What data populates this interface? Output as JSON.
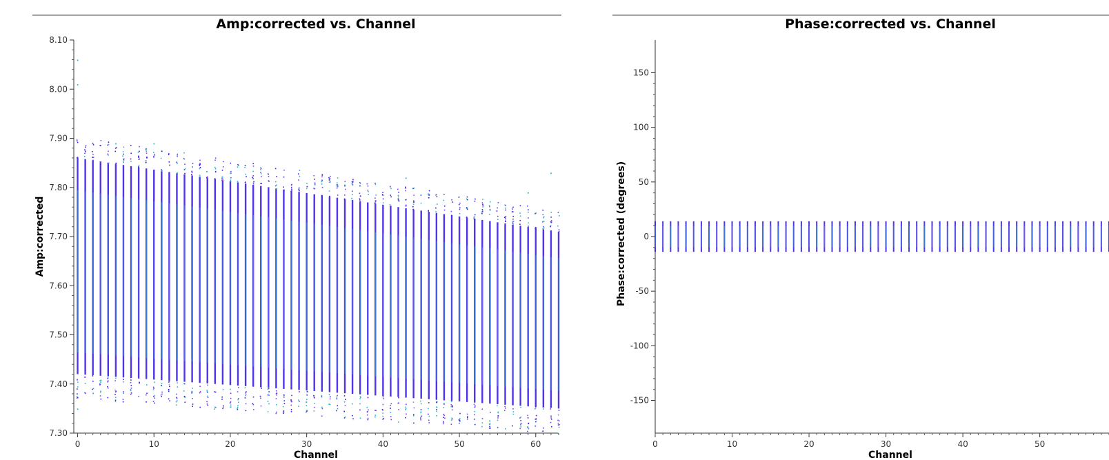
{
  "chart_data": [
    {
      "type": "scatter",
      "title": "Amp:corrected vs. Channel",
      "xlabel": "Channel",
      "ylabel": "Amp:corrected",
      "xlim": [
        -0.5,
        63
      ],
      "ylim": [
        7.3,
        8.1
      ],
      "xticks": [
        0,
        10,
        20,
        30,
        40,
        50,
        60
      ],
      "yticks": [
        "7.30",
        "7.40",
        "7.50",
        "7.60",
        "7.70",
        "7.80",
        "7.90",
        "8.00",
        "8.10"
      ],
      "grid": false,
      "colors": [
        "#3b1ee8",
        "#2db3c8",
        "#7b3ff0"
      ],
      "channels": [
        0,
        63
      ],
      "per_channel_range_start": {
        "low": 7.42,
        "high": 7.86
      },
      "per_channel_range_end": {
        "low": 7.35,
        "high": 7.71
      },
      "outliers": [
        {
          "x": 0,
          "y": 8.06
        },
        {
          "x": 0,
          "y": 8.01
        },
        {
          "x": 0,
          "y": 7.35
        },
        {
          "x": 5,
          "y": 7.89
        },
        {
          "x": 9,
          "y": 7.88
        },
        {
          "x": 10,
          "y": 7.89
        },
        {
          "x": 20,
          "y": 7.83
        },
        {
          "x": 43,
          "y": 7.82
        },
        {
          "x": 54,
          "y": 7.32
        },
        {
          "x": 59,
          "y": 7.79
        },
        {
          "x": 62,
          "y": 7.83
        }
      ]
    },
    {
      "type": "scatter",
      "title": "Phase:corrected vs. Channel",
      "xlabel": "Channel",
      "ylabel": "Phase:corrected (degrees)",
      "xlim": [
        0,
        59
      ],
      "ylim": [
        -180,
        180
      ],
      "xticks": [
        0,
        10,
        20,
        30,
        40,
        50
      ],
      "yticks": [
        -150,
        -100,
        -50,
        0,
        50,
        100,
        150
      ],
      "grid": false,
      "colors": [
        "#3b1ee8",
        "#2db3c8",
        "#7b3ff0"
      ],
      "channels": [
        0,
        59
      ],
      "per_channel_range": {
        "low": -14,
        "high": 14
      }
    }
  ]
}
